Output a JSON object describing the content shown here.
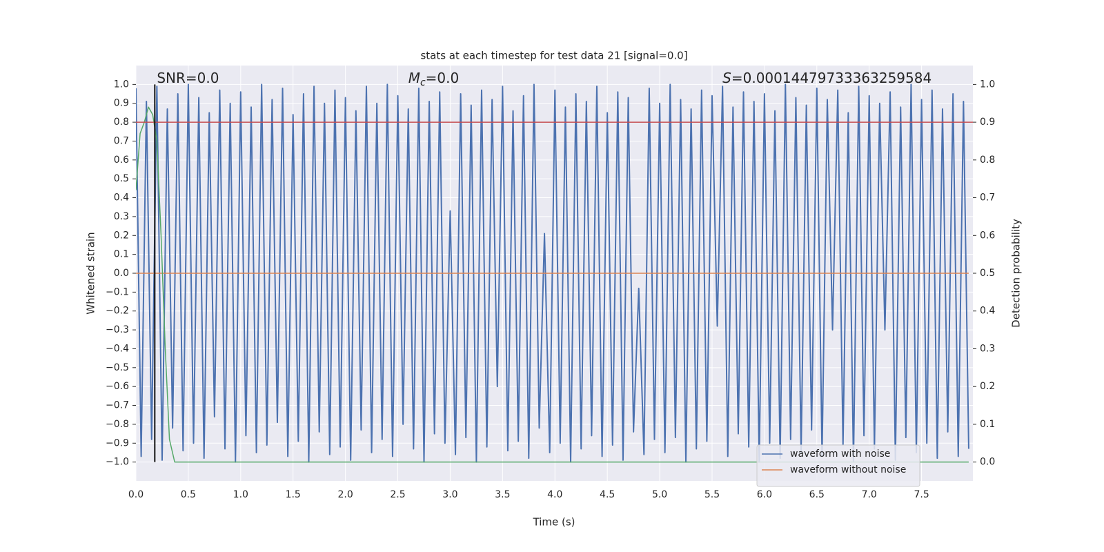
{
  "chart_data": {
    "type": "line",
    "title": "stats at each timestep for test data 21 [signal=0.0]",
    "xlabel": "Time (s)",
    "ylabel": "Whitened strain",
    "y2label": "Detection probability",
    "annotations": [
      {
        "text": "SNR=0.0",
        "x": 0.2,
        "y": 1.03
      },
      {
        "symbol": "M",
        "subscript": "c",
        "text": "=0.0",
        "x": 2.6,
        "y": 1.03
      },
      {
        "symbol": "S",
        "text": "=0.00014479733363259584",
        "x": 5.6,
        "y": 1.03
      }
    ],
    "xlim": [
      0,
      7.99
    ],
    "ylim": [
      -1.1,
      1.1
    ],
    "y2lim": [
      -0.05,
      1.05
    ],
    "grid": true,
    "xticks": [
      {
        "value": 0,
        "label": "0.0"
      },
      {
        "value": 0.5,
        "label": "0.5"
      },
      {
        "value": 1,
        "label": "1.0"
      },
      {
        "value": 1.5,
        "label": "1.5"
      },
      {
        "value": 2,
        "label": "2.0"
      },
      {
        "value": 2.5,
        "label": "2.5"
      },
      {
        "value": 3,
        "label": "3.0"
      },
      {
        "value": 3.5,
        "label": "3.5"
      },
      {
        "value": 4,
        "label": "4.0"
      },
      {
        "value": 4.5,
        "label": "4.5"
      },
      {
        "value": 5,
        "label": "5.0"
      },
      {
        "value": 5.5,
        "label": "5.5"
      },
      {
        "value": 6,
        "label": "6.0"
      },
      {
        "value": 6.5,
        "label": "6.5"
      },
      {
        "value": 7,
        "label": "7.0"
      },
      {
        "value": 7.5,
        "label": "7.5"
      }
    ],
    "yticks": [
      {
        "value": -1,
        "label": "−1.0"
      },
      {
        "value": -0.9,
        "label": "−0.9"
      },
      {
        "value": -0.8,
        "label": "−0.8"
      },
      {
        "value": -0.7,
        "label": "−0.7"
      },
      {
        "value": -0.6,
        "label": "−0.6"
      },
      {
        "value": -0.5,
        "label": "−0.5"
      },
      {
        "value": -0.4,
        "label": "−0.4"
      },
      {
        "value": -0.3,
        "label": "−0.3"
      },
      {
        "value": -0.2,
        "label": "−0.2"
      },
      {
        "value": -0.1,
        "label": "−0.1"
      },
      {
        "value": 0,
        "label": "0.0"
      },
      {
        "value": 0.1,
        "label": "0.1"
      },
      {
        "value": 0.2,
        "label": "0.2"
      },
      {
        "value": 0.3,
        "label": "0.3"
      },
      {
        "value": 0.4,
        "label": "0.4"
      },
      {
        "value": 0.5,
        "label": "0.5"
      },
      {
        "value": 0.6,
        "label": "0.6"
      },
      {
        "value": 0.7,
        "label": "0.7"
      },
      {
        "value": 0.8,
        "label": "0.8"
      },
      {
        "value": 0.9,
        "label": "0.9"
      },
      {
        "value": 1,
        "label": "1.0"
      }
    ],
    "y2ticks": [
      {
        "value": 0,
        "label": "0.0"
      },
      {
        "value": 0.1,
        "label": "0.1"
      },
      {
        "value": 0.2,
        "label": "0.2"
      },
      {
        "value": 0.3,
        "label": "0.3"
      },
      {
        "value": 0.4,
        "label": "0.4"
      },
      {
        "value": 0.5,
        "label": "0.5"
      },
      {
        "value": 0.6,
        "label": "0.6"
      },
      {
        "value": 0.7,
        "label": "0.7"
      },
      {
        "value": 0.8,
        "label": "0.8"
      },
      {
        "value": 0.9,
        "label": "0.9"
      },
      {
        "value": 1,
        "label": "1.0"
      }
    ],
    "threshold": 0.9,
    "threshold_color": "#c44e52",
    "marker_time": 0.18,
    "marker_color": "#111111",
    "legend": "lower right",
    "series": [
      {
        "name": "waveform with noise",
        "color": "#4c72b0",
        "x": [
          0,
          0.05,
          0.1,
          0.15,
          0.2,
          0.25,
          0.3,
          0.35,
          0.4,
          0.45,
          0.5,
          0.55,
          0.6,
          0.65,
          0.7,
          0.75,
          0.8,
          0.85,
          0.9,
          0.95,
          1,
          1.05,
          1.1,
          1.15,
          1.2,
          1.25,
          1.3,
          1.35,
          1.4,
          1.45,
          1.5,
          1.55,
          1.6,
          1.65,
          1.7,
          1.75,
          1.8,
          1.85,
          1.9,
          1.95,
          2,
          2.05,
          2.1,
          2.15,
          2.2,
          2.25,
          2.3,
          2.35,
          2.4,
          2.45,
          2.5,
          2.55,
          2.6,
          2.65,
          2.7,
          2.75,
          2.8,
          2.85,
          2.9,
          2.95,
          3,
          3.05,
          3.1,
          3.15,
          3.2,
          3.25,
          3.3,
          3.35,
          3.4,
          3.45,
          3.5,
          3.55,
          3.6,
          3.65,
          3.7,
          3.75,
          3.8,
          3.85,
          3.9,
          3.95,
          4,
          4.05,
          4.1,
          4.15,
          4.2,
          4.25,
          4.3,
          4.35,
          4.4,
          4.45,
          4.5,
          4.55,
          4.6,
          4.65,
          4.7,
          4.75,
          4.8,
          4.85,
          4.9,
          4.95,
          5,
          5.05,
          5.1,
          5.15,
          5.2,
          5.25,
          5.3,
          5.35,
          5.4,
          5.45,
          5.5,
          5.55,
          5.6,
          5.65,
          5.7,
          5.75,
          5.8,
          5.85,
          5.9,
          5.95,
          6,
          6.05,
          6.1,
          6.15,
          6.2,
          6.25,
          6.3,
          6.35,
          6.4,
          6.45,
          6.5,
          6.55,
          6.6,
          6.65,
          6.7,
          6.75,
          6.8,
          6.85,
          6.9,
          6.95,
          7,
          7.05,
          7.1,
          7.15,
          7.2,
          7.25,
          7.3,
          7.35,
          7.4,
          7.45,
          7.5,
          7.55,
          7.6,
          7.65,
          7.7,
          7.75,
          7.8,
          7.85,
          7.9,
          7.95
        ],
        "values": [
          0.98,
          -0.97,
          0.91,
          -0.88,
          0.99,
          -0.99,
          0.87,
          -0.82,
          0.95,
          -0.94,
          1.0,
          -0.9,
          0.93,
          -0.98,
          0.85,
          -0.76,
          0.97,
          -0.93,
          0.9,
          -1.0,
          0.96,
          -0.86,
          0.88,
          -0.95,
          1.0,
          -0.91,
          0.92,
          -0.79,
          0.98,
          -0.97,
          0.84,
          -0.89,
          0.95,
          -1.0,
          0.99,
          -0.84,
          0.9,
          -0.96,
          0.97,
          -0.92,
          0.93,
          -0.99,
          0.86,
          -0.83,
          0.99,
          -0.95,
          0.9,
          -0.88,
          1.0,
          -0.97,
          0.94,
          -0.8,
          0.87,
          -0.93,
          0.98,
          -1.0,
          0.91,
          -0.85,
          0.96,
          -0.9,
          0.33,
          -0.96,
          0.95,
          -0.87,
          0.89,
          -1.0,
          0.97,
          -0.92,
          0.92,
          -0.6,
          0.99,
          -0.94,
          0.86,
          -0.89,
          0.94,
          -0.98,
          1.0,
          -0.82,
          0.21,
          -0.95,
          0.97,
          -0.9,
          0.88,
          -1.0,
          0.95,
          -0.93,
          0.91,
          -0.86,
          0.99,
          -0.97,
          0.85,
          -0.91,
          0.96,
          -0.99,
          0.93,
          -0.84,
          -0.08,
          -0.96,
          0.98,
          -0.88,
          0.9,
          -0.95,
          1.0,
          -0.87,
          0.92,
          -1.0,
          0.87,
          -0.93,
          0.97,
          -0.89,
          0.94,
          -0.28,
          0.99,
          -0.97,
          0.88,
          -0.85,
          0.96,
          -0.92,
          0.91,
          -1.0,
          0.95,
          -0.9,
          0.86,
          -0.98,
          1.0,
          -0.88,
          0.93,
          -0.95,
          0.89,
          -0.83,
          0.98,
          -0.97,
          0.92,
          -0.3,
          0.97,
          -0.91,
          0.85,
          -1.0,
          0.99,
          -0.86,
          0.94,
          -0.93,
          0.9,
          -0.3,
          0.96,
          -0.99,
          0.88,
          -0.87,
          1.0,
          -0.95,
          0.92,
          -0.9,
          0.97,
          -0.98,
          0.87,
          -0.84,
          0.95,
          -0.97,
          0.91,
          -0.93
        ]
      },
      {
        "name": "waveform without noise",
        "color": "#dd8452",
        "x": [
          0,
          7.95
        ],
        "values": [
          0,
          0
        ]
      },
      {
        "color": "#55a868",
        "axis": "y2",
        "x": [
          0,
          0.04,
          0.08,
          0.12,
          0.16,
          0.2,
          0.24,
          0.28,
          0.32,
          0.37,
          7.95
        ],
        "values": [
          0.72,
          0.87,
          0.9,
          0.94,
          0.92,
          0.85,
          0.6,
          0.3,
          0.06,
          0,
          0
        ]
      }
    ]
  }
}
